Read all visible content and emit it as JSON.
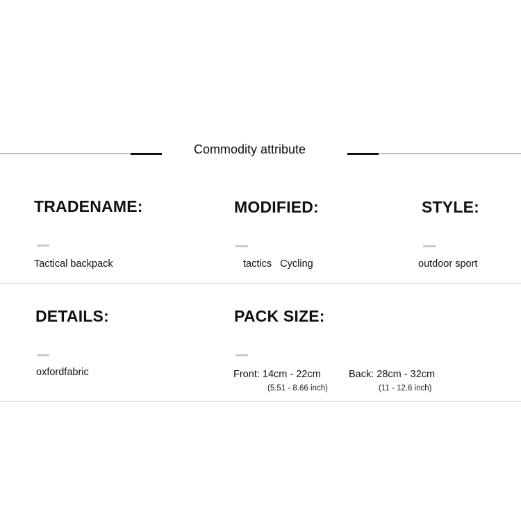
{
  "header": {
    "title": "Commodity attribute"
  },
  "attributes": [
    {
      "label": "TRADENAME:",
      "value": "Tactical backpack"
    },
    {
      "label": "MODIFIED:",
      "value": "tactics   Cycling"
    },
    {
      "label": "STYLE:",
      "value": "outdoor sport"
    },
    {
      "label": "DETAILS:",
      "value": "oxfordfabric"
    },
    {
      "label": "PACK SIZE:",
      "front": "Front: 14cm - 22cm",
      "front_inch": "(5.51 - 8.66 inch)",
      "back": "Back: 28cm - 32cm",
      "back_inch": "(11 - 12.6 inch)"
    }
  ],
  "colors": {
    "text": "#111111",
    "divider": "#c8c8c8",
    "dash": "#c9c9c9"
  }
}
